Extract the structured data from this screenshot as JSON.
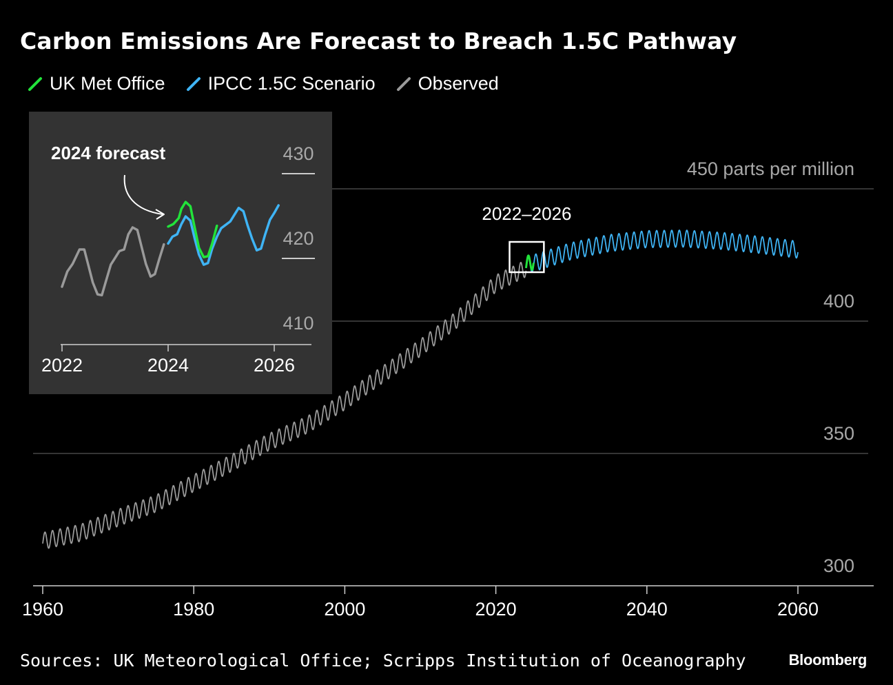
{
  "title": "Carbon Emissions Are Forecast to Breach 1.5C Pathway",
  "legend": [
    {
      "label": "UK Met Office",
      "color": "#22e33b"
    },
    {
      "label": "IPCC 1.5C Scenario",
      "color": "#3fb4f5"
    },
    {
      "label": "Observed",
      "color": "#9a9a9a"
    }
  ],
  "source": "Sources: UK Meteorological Office; Scripps Institution of Oceanography",
  "brand": "Bloomberg",
  "chart_data": [
    {
      "type": "line",
      "ylabel": "parts per million",
      "y_unit_label": "450 parts per million",
      "xlim": [
        1960,
        2060
      ],
      "ylim": [
        300,
        450
      ],
      "x_ticks": [
        "1960",
        "1980",
        "2000",
        "2020",
        "2040",
        "2060"
      ],
      "y_ticks": [
        {
          "value": 450,
          "label": "450 parts per million"
        },
        {
          "value": 400,
          "label": "400"
        },
        {
          "value": 350,
          "label": "350"
        },
        {
          "value": 300,
          "label": "300"
        }
      ],
      "grid": true,
      "legend_position": "top-left",
      "annotation": {
        "label": "2022–2026",
        "x_range": [
          2022,
          2026
        ]
      },
      "series": [
        {
          "name": "Observed",
          "color": "#9a9a9a",
          "x": [
            1960,
            1965,
            1970,
            1975,
            1980,
            1985,
            1990,
            1995,
            2000,
            2005,
            2010,
            2015,
            2020,
            2024
          ],
          "values": [
            316.9,
            320.0,
            325.7,
            331.1,
            338.8,
            346.4,
            354.4,
            360.8,
            369.7,
            379.8,
            389.9,
            401.0,
            414.2,
            420.0
          ],
          "seasonal_amplitude_ppm": 3.2
        },
        {
          "name": "IPCC 1.5C Scenario",
          "color": "#3fb4f5",
          "x": [
            2024,
            2026,
            2030,
            2035,
            2040,
            2045,
            2050,
            2055,
            2060
          ],
          "values": [
            421.0,
            422.8,
            426.5,
            429.5,
            431.0,
            431.2,
            430.3,
            428.8,
            427.0
          ],
          "seasonal_amplitude_ppm": 3.2
        },
        {
          "name": "UK Met Office",
          "color": "#22e33b",
          "x": [
            2024,
            2025
          ],
          "values": [
            421.0,
            423.0
          ],
          "seasonal_amplitude_ppm": 3.2
        }
      ]
    },
    {
      "type": "line",
      "title": "2024 forecast",
      "xlim": [
        2022,
        2026.2
      ],
      "ylim": [
        410,
        430
      ],
      "x_ticks": [
        "2022",
        "2024",
        "2026"
      ],
      "y_ticks": [
        {
          "value": 430,
          "label": "430"
        },
        {
          "value": 420,
          "label": "420"
        },
        {
          "value": 410,
          "label": "410"
        }
      ],
      "series": [
        {
          "name": "Observed",
          "color": "#9a9a9a",
          "x": [
            2022.0,
            2022.1,
            2022.2,
            2022.33,
            2022.42,
            2022.58,
            2022.67,
            2022.75,
            2022.83,
            2022.92,
            2023.0,
            2023.08,
            2023.17,
            2023.25,
            2023.33,
            2023.42,
            2023.58,
            2023.67,
            2023.75,
            2023.83,
            2023.92
          ],
          "values": [
            414.3,
            416.1,
            417.0,
            418.7,
            418.7,
            414.8,
            413.4,
            413.3,
            415.0,
            416.9,
            417.7,
            418.5,
            418.7,
            420.5,
            421.3,
            421.0,
            417.0,
            415.5,
            415.8,
            417.5,
            419.3
          ]
        },
        {
          "name": "IPCC 1.5C Scenario",
          "color": "#3fb4f5",
          "x": [
            2024.0,
            2024.08,
            2024.17,
            2024.25,
            2024.33,
            2024.42,
            2024.5,
            2024.58,
            2024.67,
            2024.75,
            2024.83,
            2024.92,
            2025.0,
            2025.17,
            2025.33,
            2025.42,
            2025.5,
            2025.58,
            2025.67,
            2025.75,
            2025.83,
            2025.92,
            2026.0,
            2026.08
          ],
          "values": [
            419.4,
            420.2,
            420.5,
            421.7,
            422.6,
            422.1,
            420.0,
            418.1,
            416.9,
            417.1,
            418.8,
            420.2,
            421.2,
            422.0,
            423.6,
            423.2,
            421.5,
            420.0,
            418.6,
            418.8,
            420.5,
            422.2,
            423.0,
            423.9
          ]
        },
        {
          "name": "UK Met Office",
          "color": "#22e33b",
          "x": [
            2024.0,
            2024.1,
            2024.2,
            2024.25,
            2024.33,
            2024.42,
            2024.5,
            2024.58,
            2024.67,
            2024.75,
            2024.83,
            2024.92
          ],
          "values": [
            421.4,
            421.7,
            422.4,
            423.5,
            424.3,
            423.8,
            421.3,
            418.9,
            417.8,
            417.9,
            419.4,
            421.5
          ]
        }
      ]
    }
  ]
}
